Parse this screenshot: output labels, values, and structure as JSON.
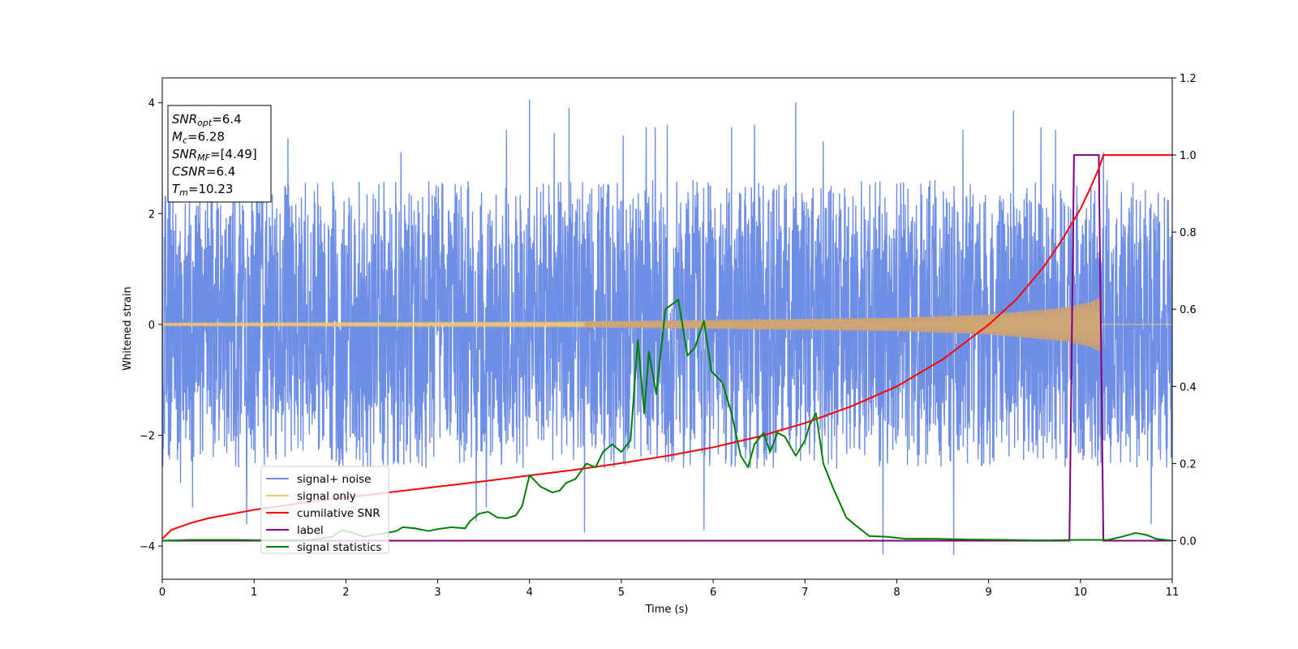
{
  "chart_data": {
    "type": "line",
    "xlabel": "Time (s)",
    "ylabel": "Whitened strain",
    "xlim": [
      0,
      11
    ],
    "ylim": [
      -4.6,
      4.45
    ],
    "y2lim": [
      -0.1,
      1.2
    ],
    "grid": false,
    "legend_position": "bottom-left",
    "x_ticks": [
      "0",
      "1",
      "2",
      "3",
      "4",
      "5",
      "6",
      "7",
      "8",
      "9",
      "10",
      "11"
    ],
    "y_ticks": [
      "4",
      "2",
      "0",
      "−2",
      "−4"
    ],
    "y2_ticks": [
      "1.2",
      "1.0",
      "0.8",
      "0.6",
      "0.4",
      "0.2",
      "0.0"
    ],
    "annotation": [
      {
        "sym": "SNR",
        "sub": "opt",
        "value": "=6.4"
      },
      {
        "sym": "M",
        "sub": "c",
        "value": "=6.28"
      },
      {
        "sym": "SNR",
        "sub": "MF",
        "value": "=[4.49]"
      },
      {
        "sym": "CSNR",
        "sub": "",
        "value": "=6.4"
      },
      {
        "sym": "T",
        "sub": "m",
        "value": "=10.23"
      }
    ],
    "legend": [
      {
        "label": "signal+ noise",
        "color": "#6f8ee6"
      },
      {
        "label": "signal only",
        "color": "#f5c86a"
      },
      {
        "label": "cumilative SNR",
        "color": "#ff0000"
      },
      {
        "label": "label",
        "color": "#800080"
      },
      {
        "label": "signal statistics",
        "color": "#008000"
      }
    ],
    "series": [
      {
        "name": "signal+ noise",
        "axis": "left",
        "color": "#6f8ee6",
        "description": "whitened noise, roughly ±2.6 envelope with spikes",
        "x_range": [
          0,
          11
        ],
        "amplitude_envelope": 2.6,
        "peak_spikes": [
          {
            "x": 0.0,
            "y": 2.35
          },
          {
            "x": 0.2,
            "y": -2.85
          },
          {
            "x": 0.33,
            "y": -3.3
          },
          {
            "x": 0.92,
            "y": -3.6
          },
          {
            "x": 1.37,
            "y": 3.35
          },
          {
            "x": 2.6,
            "y": 3.1
          },
          {
            "x": 3.42,
            "y": -3.55
          },
          {
            "x": 3.53,
            "y": -3.3
          },
          {
            "x": 3.75,
            "y": 3.5
          },
          {
            "x": 4.0,
            "y": 4.05
          },
          {
            "x": 4.27,
            "y": 3.45
          },
          {
            "x": 4.43,
            "y": 3.9
          },
          {
            "x": 4.6,
            "y": -3.75
          },
          {
            "x": 5.02,
            "y": 3.4
          },
          {
            "x": 5.27,
            "y": 3.55
          },
          {
            "x": 5.37,
            "y": 3.55
          },
          {
            "x": 5.5,
            "y": 3.6
          },
          {
            "x": 5.9,
            "y": -3.7
          },
          {
            "x": 6.2,
            "y": 3.55
          },
          {
            "x": 6.45,
            "y": 3.6
          },
          {
            "x": 6.9,
            "y": 4.0
          },
          {
            "x": 7.2,
            "y": 3.3
          },
          {
            "x": 7.85,
            "y": -4.15
          },
          {
            "x": 8.62,
            "y": -4.15
          },
          {
            "x": 8.72,
            "y": 3.5
          },
          {
            "x": 9.27,
            "y": 3.85
          },
          {
            "x": 9.57,
            "y": 3.55
          },
          {
            "x": 9.73,
            "y": 3.5
          },
          {
            "x": 10.25,
            "y": 3.1
          },
          {
            "x": 10.77,
            "y": -3.6
          }
        ]
      },
      {
        "name": "signal only",
        "axis": "left",
        "color": "#f5c86a",
        "description": "chirp with growing amplitude ending at merger",
        "x_range": [
          0,
          10.23
        ],
        "amplitude": [
          [
            0,
            0.03
          ],
          [
            5,
            0.06
          ],
          [
            8,
            0.12
          ],
          [
            9,
            0.18
          ],
          [
            9.8,
            0.3
          ],
          [
            10.1,
            0.4
          ],
          [
            10.23,
            0.5
          ]
        ]
      },
      {
        "name": "cumilative SNR",
        "axis": "right",
        "color": "#ff0000",
        "points": [
          [
            0.0,
            0.005
          ],
          [
            0.1,
            0.028
          ],
          [
            0.3,
            0.045
          ],
          [
            0.5,
            0.058
          ],
          [
            1.0,
            0.08
          ],
          [
            1.5,
            0.097
          ],
          [
            2.0,
            0.112
          ],
          [
            2.5,
            0.126
          ],
          [
            3.0,
            0.14
          ],
          [
            3.5,
            0.154
          ],
          [
            4.0,
            0.169
          ],
          [
            4.5,
            0.184
          ],
          [
            5.0,
            0.201
          ],
          [
            5.5,
            0.22
          ],
          [
            6.0,
            0.242
          ],
          [
            6.5,
            0.27
          ],
          [
            7.0,
            0.305
          ],
          [
            7.5,
            0.348
          ],
          [
            8.0,
            0.4
          ],
          [
            8.5,
            0.47
          ],
          [
            9.0,
            0.56
          ],
          [
            9.3,
            0.625
          ],
          [
            9.6,
            0.71
          ],
          [
            9.8,
            0.78
          ],
          [
            10.0,
            0.86
          ],
          [
            10.1,
            0.91
          ],
          [
            10.2,
            0.965
          ],
          [
            10.25,
            1.0
          ],
          [
            11.0,
            1.0
          ]
        ]
      },
      {
        "name": "label",
        "axis": "right",
        "color": "#800080",
        "points": [
          [
            0,
            0
          ],
          [
            9.88,
            0
          ],
          [
            9.93,
            1.0
          ],
          [
            10.2,
            1.0
          ],
          [
            10.25,
            0
          ],
          [
            11,
            0
          ]
        ]
      },
      {
        "name": "signal statistics",
        "axis": "right",
        "color": "#008000",
        "points": [
          [
            0.0,
            0.0
          ],
          [
            0.3,
            0.002
          ],
          [
            0.8,
            0.002
          ],
          [
            1.2,
            0.001
          ],
          [
            1.6,
            0.002
          ],
          [
            1.85,
            0.01
          ],
          [
            1.95,
            0.027
          ],
          [
            2.05,
            0.022
          ],
          [
            2.2,
            0.01
          ],
          [
            2.3,
            0.015
          ],
          [
            2.45,
            0.02
          ],
          [
            2.55,
            0.025
          ],
          [
            2.62,
            0.035
          ],
          [
            2.75,
            0.032
          ],
          [
            2.9,
            0.025
          ],
          [
            3.0,
            0.03
          ],
          [
            3.15,
            0.035
          ],
          [
            3.3,
            0.032
          ],
          [
            3.35,
            0.05
          ],
          [
            3.45,
            0.07
          ],
          [
            3.55,
            0.075
          ],
          [
            3.65,
            0.06
          ],
          [
            3.75,
            0.058
          ],
          [
            3.85,
            0.065
          ],
          [
            3.92,
            0.09
          ],
          [
            4.0,
            0.17
          ],
          [
            4.12,
            0.14
          ],
          [
            4.25,
            0.125
          ],
          [
            4.33,
            0.13
          ],
          [
            4.4,
            0.15
          ],
          [
            4.5,
            0.16
          ],
          [
            4.62,
            0.2
          ],
          [
            4.72,
            0.19
          ],
          [
            4.8,
            0.23
          ],
          [
            4.9,
            0.25
          ],
          [
            5.0,
            0.23
          ],
          [
            5.1,
            0.26
          ],
          [
            5.18,
            0.52
          ],
          [
            5.25,
            0.33
          ],
          [
            5.3,
            0.49
          ],
          [
            5.38,
            0.38
          ],
          [
            5.48,
            0.6
          ],
          [
            5.62,
            0.625
          ],
          [
            5.72,
            0.48
          ],
          [
            5.8,
            0.5
          ],
          [
            5.9,
            0.57
          ],
          [
            5.98,
            0.44
          ],
          [
            6.1,
            0.41
          ],
          [
            6.2,
            0.33
          ],
          [
            6.3,
            0.22
          ],
          [
            6.38,
            0.19
          ],
          [
            6.45,
            0.25
          ],
          [
            6.55,
            0.28
          ],
          [
            6.62,
            0.23
          ],
          [
            6.7,
            0.28
          ],
          [
            6.78,
            0.27
          ],
          [
            6.9,
            0.22
          ],
          [
            7.0,
            0.26
          ],
          [
            7.05,
            0.3
          ],
          [
            7.12,
            0.33
          ],
          [
            7.2,
            0.2
          ],
          [
            7.3,
            0.14
          ],
          [
            7.45,
            0.06
          ],
          [
            7.55,
            0.04
          ],
          [
            7.7,
            0.012
          ],
          [
            7.9,
            0.01
          ],
          [
            8.1,
            0.005
          ],
          [
            8.4,
            0.005
          ],
          [
            8.8,
            0.003
          ],
          [
            9.2,
            0.002
          ],
          [
            9.6,
            0.001
          ],
          [
            10.0,
            0.002
          ],
          [
            10.3,
            0.002
          ],
          [
            10.45,
            0.01
          ],
          [
            10.6,
            0.02
          ],
          [
            10.72,
            0.015
          ],
          [
            10.82,
            0.005
          ],
          [
            11.0,
            0.0
          ]
        ]
      }
    ]
  }
}
